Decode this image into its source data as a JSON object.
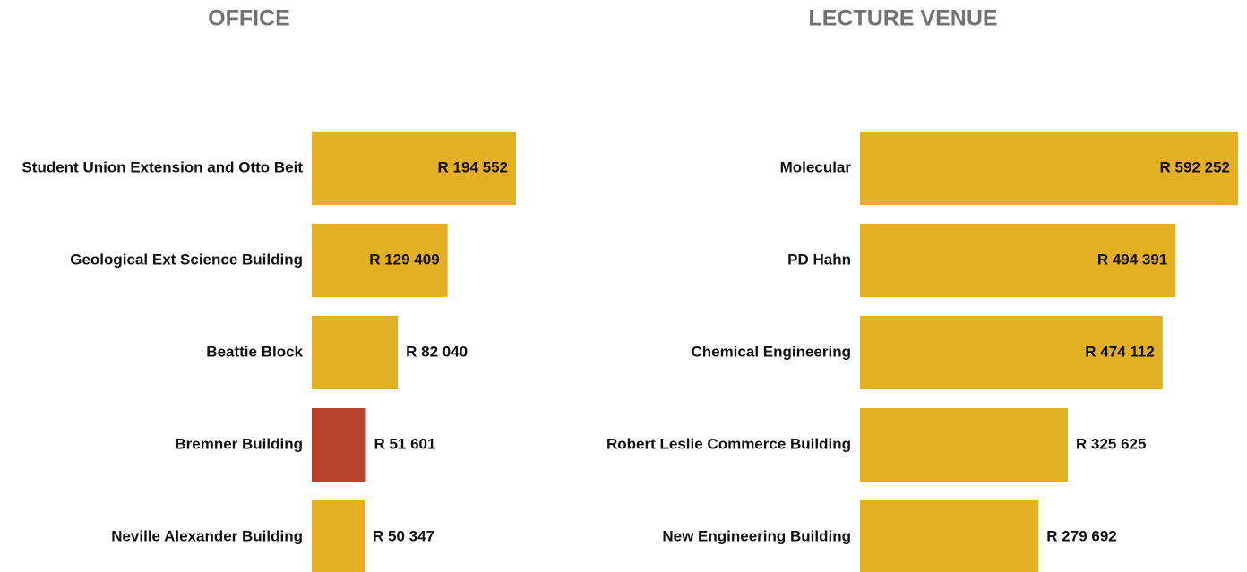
{
  "chart_data": [
    {
      "type": "bar",
      "title": "OFFICE",
      "categories": [
        "Student Union Extension and Otto Beit",
        "Geological Ext Science Building",
        "Beattie Block",
        "Bremner Building",
        "Neville Alexander Building"
      ],
      "values": [
        194552,
        129409,
        82040,
        51601,
        50347
      ],
      "value_labels": [
        "R 194 552",
        "R 129 409",
        "R 82 040",
        "R 51 601",
        "R 50 347"
      ],
      "colors": [
        "#e3b025",
        "#e3b025",
        "#e3b025",
        "#b5432c",
        "#e3b025"
      ]
    },
    {
      "type": "bar",
      "title": "LECTURE VENUE",
      "categories": [
        "Molecular",
        "PD Hahn",
        "Chemical Engineering",
        "Robert Leslie Commerce Building",
        "New Engineering Building"
      ],
      "values": [
        592252,
        494391,
        474112,
        325625,
        279692
      ],
      "value_labels": [
        "R 592 252",
        "R 494 391",
        "R 474 112",
        "R 325 625",
        "R 279 692"
      ],
      "colors": [
        "#e3b025",
        "#e3b025",
        "#e3b025",
        "#e3b025",
        "#e3b025"
      ]
    }
  ]
}
